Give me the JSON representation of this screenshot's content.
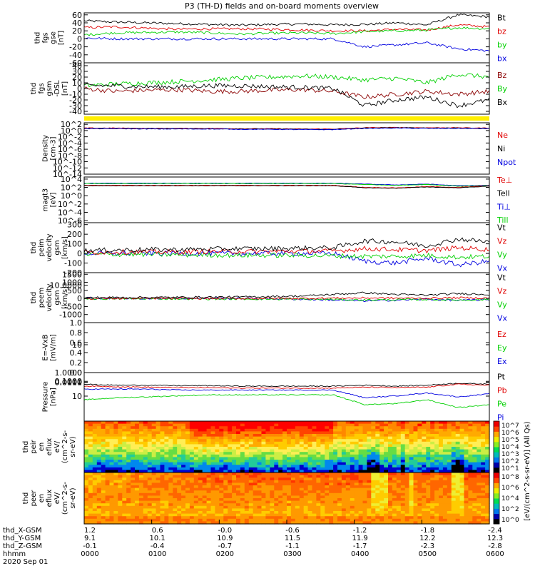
{
  "title": "P3 (TH-D) fields and on-board moments overview",
  "chart_data": [
    {
      "type": "line",
      "ylabel": [
        "thd",
        "fgs",
        "gse",
        "[nT]"
      ],
      "yticks": [
        60,
        40,
        20,
        0,
        -20,
        -40,
        -60
      ],
      "ylim": [
        -60,
        65
      ],
      "legend": [
        {
          "name": "Bt",
          "color": "#000000"
        },
        {
          "name": "bz",
          "color": "#e00000"
        },
        {
          "name": "by",
          "color": "#00d000"
        },
        {
          "name": "bx",
          "color": "#0000e0"
        }
      ],
      "series": [
        {
          "name": "Bt",
          "color": "#000000",
          "values": [
            45,
            42,
            40,
            38,
            36,
            34,
            36,
            37,
            35,
            36,
            40,
            35,
            60,
            55
          ]
        },
        {
          "name": "bz",
          "color": "#e00000",
          "values": [
            28,
            30,
            27,
            24,
            25,
            25,
            24,
            22,
            20,
            20,
            24,
            22,
            35,
            30
          ]
        },
        {
          "name": "by",
          "color": "#00d000",
          "values": [
            10,
            15,
            16,
            17,
            15,
            12,
            14,
            15,
            13,
            18,
            20,
            22,
            28,
            25
          ]
        },
        {
          "name": "bx",
          "color": "#0000e0",
          "values": [
            2,
            0,
            0,
            0,
            0,
            0,
            0,
            0,
            0,
            -20,
            -15,
            -10,
            -25,
            -30
          ]
        }
      ],
      "noise": 3
    },
    {
      "type": "line",
      "ylabel": [
        "thd",
        "fgs",
        "gsm",
        "-DSL",
        "[nT]"
      ],
      "yticks": [
        40,
        30,
        20,
        10,
        0,
        -10,
        -20,
        -30,
        -40
      ],
      "ylim": [
        -45,
        45
      ],
      "legend": [
        {
          "name": "Bz",
          "color": "#8b0000"
        },
        {
          "name": "By",
          "color": "#00d000"
        },
        {
          "name": "Bx",
          "color": "#000000"
        }
      ],
      "series": [
        {
          "name": "Bz",
          "color": "#8b0000",
          "values": [
            0,
            -5,
            -3,
            -2,
            -5,
            -5,
            -3,
            -2,
            -5,
            -15,
            -10,
            -5,
            -10,
            -5
          ]
        },
        {
          "name": "By",
          "color": "#00d000",
          "values": [
            5,
            8,
            10,
            12,
            15,
            18,
            20,
            22,
            20,
            15,
            18,
            10,
            25,
            20
          ]
        },
        {
          "name": "Bx",
          "color": "#000000",
          "values": [
            5,
            5,
            3,
            3,
            5,
            5,
            3,
            2,
            0,
            -30,
            -20,
            -15,
            -30,
            -20
          ]
        }
      ],
      "noise": 4
    },
    {
      "type": "line",
      "ylabel": [
        "Density",
        "[cm-3]"
      ],
      "ylog": true,
      "yticks": [
        "10^2",
        "10^0",
        "10^-2",
        "10^-4",
        "10^-6",
        "10^-8",
        "10^-10",
        "10^-12",
        "10^-14"
      ],
      "ylim": [
        -14,
        2.5
      ],
      "legend": [
        {
          "name": "Ne",
          "color": "#e00000"
        },
        {
          "name": "Ni",
          "color": "#000000"
        },
        {
          "name": "Npot",
          "color": "#0000e0"
        }
      ],
      "series": [
        {
          "name": "Ne",
          "color": "#e00000",
          "values": [
            0.8,
            0.8,
            0.7,
            0.7,
            0.7,
            0.6,
            0.6,
            0.5,
            0.5,
            0.9,
            1.0,
            0.9,
            0.9,
            0.8
          ]
        },
        {
          "name": "Ni",
          "color": "#000000",
          "values": [
            0.7,
            0.7,
            0.6,
            0.6,
            0.6,
            0.5,
            0.5,
            0.4,
            0.4,
            0.8,
            0.9,
            0.8,
            0.8,
            0.7
          ]
        },
        {
          "name": "Npot",
          "color": "#0000e0",
          "values": [
            0.6,
            0.6,
            0.5,
            0.5,
            0.5,
            0.4,
            0.4,
            0.3,
            0.3,
            0.7,
            0.8,
            0.7,
            0.7,
            0.6
          ]
        }
      ],
      "noise": 0.1
    },
    {
      "type": "line",
      "ylabel": [
        "magt3",
        "[eV]"
      ],
      "ylog": true,
      "yticks": [
        "10^4",
        "10^2",
        "10^0",
        "10^-2",
        "10^-4",
        "10^-6"
      ],
      "ylim": [
        -6.5,
        4.5
      ],
      "legend": [
        {
          "name": "Te⊥",
          "color": "#e00000"
        },
        {
          "name": "Tell",
          "color": "#000000"
        },
        {
          "name": "Ti⊥",
          "color": "#0000e0"
        },
        {
          "name": "Till",
          "color": "#00d000"
        }
      ],
      "series": [
        {
          "name": "Ti⊥",
          "color": "#0000e0",
          "values": [
            3.0,
            3.0,
            3.0,
            3.0,
            3.0,
            3.0,
            3.0,
            3.0,
            3.0,
            2.8,
            2.6,
            2.8,
            2.4,
            2.5
          ]
        },
        {
          "name": "Till",
          "color": "#00d000",
          "values": [
            2.9,
            2.9,
            2.9,
            2.9,
            2.9,
            2.9,
            2.9,
            2.9,
            2.9,
            2.7,
            2.5,
            2.7,
            2.3,
            2.4
          ]
        },
        {
          "name": "Te⊥",
          "color": "#e00000",
          "values": [
            2.5,
            2.5,
            2.5,
            2.5,
            2.5,
            2.5,
            2.5,
            2.5,
            2.5,
            2.0,
            1.9,
            2.2,
            2.0,
            2.4
          ]
        },
        {
          "name": "Tell",
          "color": "#000000",
          "values": [
            2.4,
            2.4,
            2.4,
            2.4,
            2.4,
            2.4,
            2.4,
            2.4,
            2.4,
            1.9,
            1.8,
            2.1,
            1.9,
            2.3
          ]
        }
      ],
      "noise": 0.05
    },
    {
      "type": "line",
      "ylabel": [
        "thd",
        "peim",
        "velocity",
        "gsm",
        "[km/s]"
      ],
      "yticks": [
        300,
        200,
        100,
        0,
        -100,
        -200
      ],
      "ylim": [
        -200,
        320
      ],
      "legend": [
        {
          "name": "Vt",
          "color": "#000000"
        },
        {
          "name": "Vz",
          "color": "#e00000"
        },
        {
          "name": "Vy",
          "color": "#00d000"
        },
        {
          "name": "Vx",
          "color": "#0000e0"
        }
      ],
      "series": [
        {
          "name": "Vx",
          "color": "#0000e0",
          "values": [
            0,
            0,
            0,
            0,
            0,
            0,
            0,
            0,
            0,
            -80,
            -100,
            -50,
            -120,
            -80
          ]
        },
        {
          "name": "Vy",
          "color": "#00d000",
          "values": [
            -10,
            -10,
            -10,
            -15,
            -15,
            -20,
            -20,
            -20,
            -25,
            -30,
            -30,
            -20,
            -40,
            -30
          ]
        },
        {
          "name": "Vz",
          "color": "#e00000",
          "values": [
            10,
            15,
            15,
            15,
            20,
            20,
            20,
            25,
            25,
            50,
            40,
            30,
            60,
            40
          ]
        },
        {
          "name": "Vt",
          "color": "#000000",
          "values": [
            30,
            35,
            40,
            40,
            45,
            50,
            50,
            55,
            60,
            130,
            120,
            80,
            150,
            120
          ]
        }
      ],
      "noise": 25
    },
    {
      "type": "line",
      "ylabel": [
        "thd",
        "peem",
        "velocity",
        "gsm",
        "[km/s]"
      ],
      "yticks": [
        1500,
        1000,
        500,
        0,
        -500,
        -1000
      ],
      "ylim": [
        -1500,
        1600
      ],
      "legend": [
        {
          "name": "Vt",
          "color": "#000000"
        },
        {
          "name": "Vz",
          "color": "#e00000"
        },
        {
          "name": "Vy",
          "color": "#00d000"
        },
        {
          "name": "Vx",
          "color": "#0000e0"
        }
      ],
      "series": [
        {
          "name": "Vx",
          "color": "#0000e0",
          "values": [
            0,
            0,
            0,
            0,
            0,
            0,
            -20,
            -50,
            -100,
            -150,
            -100,
            -50,
            -120,
            -80
          ]
        },
        {
          "name": "Vy",
          "color": "#00d000",
          "values": [
            -20,
            -20,
            -20,
            -20,
            -30,
            -30,
            -40,
            -50,
            -60,
            -100,
            -80,
            -60,
            -100,
            -70
          ]
        },
        {
          "name": "Vz",
          "color": "#e00000",
          "values": [
            0,
            0,
            0,
            0,
            0,
            0,
            0,
            0,
            20,
            30,
            20,
            10,
            40,
            20
          ]
        },
        {
          "name": "Vt",
          "color": "#000000",
          "values": [
            50,
            60,
            60,
            70,
            80,
            90,
            120,
            150,
            250,
            350,
            250,
            200,
            300,
            250
          ]
        }
      ],
      "noise": 60
    },
    {
      "type": "line",
      "ylabel": [
        "E=-VxB",
        "[mV/m]"
      ],
      "yticks": [
        "1.0",
        "0.8",
        "0.6",
        "0.4",
        "0.2",
        "0.0"
      ],
      "ylim": [
        0,
        1.0
      ],
      "legend": [
        {
          "name": "Ez",
          "color": "#e00000"
        },
        {
          "name": "Ey",
          "color": "#00d000"
        },
        {
          "name": "Ex",
          "color": "#0000e0"
        }
      ],
      "series": []
    },
    {
      "type": "line",
      "ylabel": [
        "Pressure",
        "[nPa]"
      ],
      "ylog": true,
      "yticks": [
        "10.0000",
        "1.0000",
        "0.1000",
        "0.0100",
        "0.0010",
        "0.0001"
      ],
      "ylim": [
        -4,
        1
      ],
      "legend": [
        {
          "name": "Pt",
          "color": "#000000"
        },
        {
          "name": "Pb",
          "color": "#e00000"
        },
        {
          "name": "Pe",
          "color": "#00d000"
        },
        {
          "name": "Pi",
          "color": "#0000e0"
        }
      ],
      "series": [
        {
          "name": "Pt",
          "color": "#000000",
          "values": [
            -0.2,
            -0.3,
            -0.3,
            -0.35,
            -0.35,
            -0.4,
            -0.4,
            -0.4,
            -0.4,
            -0.3,
            -0.4,
            -0.3,
            -0.1,
            -0.2
          ]
        },
        {
          "name": "Pb",
          "color": "#e00000",
          "values": [
            -0.4,
            -0.45,
            -0.5,
            -0.55,
            -0.55,
            -0.6,
            -0.6,
            -0.6,
            -0.6,
            -0.5,
            -0.55,
            -0.5,
            -0.2,
            -0.3
          ]
        },
        {
          "name": "Pi",
          "color": "#0000e0",
          "values": [
            -0.7,
            -0.7,
            -0.7,
            -0.8,
            -0.8,
            -0.8,
            -0.8,
            -0.8,
            -0.8,
            -1.6,
            -1.4,
            -1.1,
            -1.5,
            -1.2
          ]
        },
        {
          "name": "Pe",
          "color": "#00d000",
          "values": [
            -1.8,
            -1.6,
            -1.5,
            -1.4,
            -1.3,
            -1.3,
            -1.3,
            -1.3,
            -1.3,
            -2.3,
            -2.2,
            -1.8,
            -2.6,
            -2.3
          ]
        }
      ],
      "noise": 0.05
    },
    {
      "type": "heatmap",
      "ylabel": [
        "thd",
        "peir",
        "en",
        "eflux",
        "eV/",
        "(cm^2-s-",
        "sr-eV)"
      ],
      "ylog": true,
      "yticks": [
        "10000",
        "1000",
        "100",
        "10"
      ],
      "ylim": [
        0.8,
        4.5
      ],
      "colorbar": [
        "10^7",
        "10^6",
        "10^5",
        "10^4",
        "10^3",
        "10^2",
        "10^1"
      ]
    },
    {
      "type": "heatmap",
      "ylabel": [
        "thd",
        "peer",
        "en",
        "eflux",
        "eV/",
        "(cm^2-s-",
        "sr-eV)"
      ],
      "ylog": true,
      "yticks": [
        "10000",
        "1000",
        "100",
        "10"
      ],
      "ylim": [
        0.8,
        4.5
      ],
      "colorbar": [
        "10^8",
        "10^6",
        "10^4",
        "10^2",
        "10^0"
      ],
      "colorbar_label": "[eV/(cm^2-s-sr-eV)] (All Qs)"
    }
  ],
  "x_axis": {
    "rows": [
      {
        "label": "thd_X-GSM",
        "values": [
          "1.2",
          "0.6",
          "-0.0",
          "-0.6",
          "-1.2",
          "-1.8",
          "-2.4"
        ]
      },
      {
        "label": "thd_Y-GSM",
        "values": [
          "9.1",
          "10.1",
          "10.9",
          "11.5",
          "11.9",
          "12.2",
          "12.3"
        ]
      },
      {
        "label": "thd_Z-GSM",
        "values": [
          "-0.1",
          "-0.4",
          "-0.7",
          "-1.1",
          "-1.7",
          "-2.3",
          "-2.8"
        ]
      },
      {
        "label": "hhmm",
        "values": [
          "0000",
          "0100",
          "0200",
          "0300",
          "0400",
          "0500",
          "0600"
        ]
      }
    ],
    "date": "2020 Sep 01"
  }
}
